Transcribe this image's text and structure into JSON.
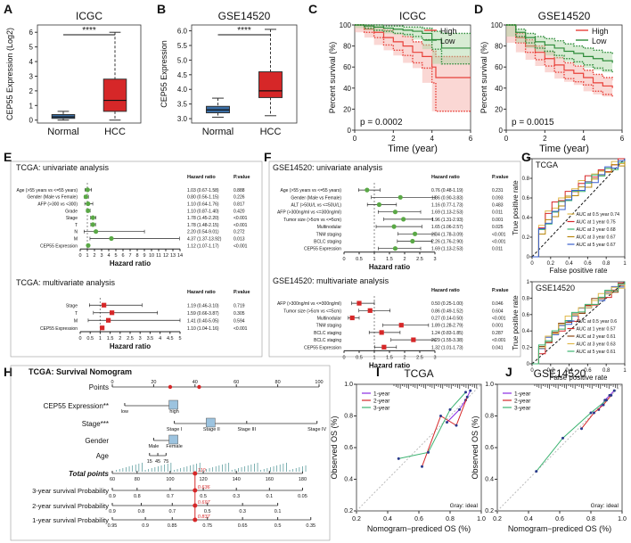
{
  "panel_labels": [
    "A",
    "B",
    "C",
    "D",
    "E",
    "F",
    "G",
    "H",
    "I",
    "J"
  ],
  "colors": {
    "normal_box": "#3a6ea5",
    "hcc_box": "#d62728",
    "high": "#e8413a",
    "low": "#2e8b3a",
    "green_dot": "#5aa846",
    "red_sq": "#d62728"
  },
  "chart_data": [
    {
      "id": "A",
      "type": "box",
      "title": "ICGC",
      "ylabel": "CEP55 Expression (Log2)",
      "categories": [
        "Normal",
        "HCC"
      ],
      "ylim": [
        -0.2,
        6.5
      ],
      "yticks": [
        0,
        1,
        2,
        3,
        4,
        5,
        6
      ],
      "boxes": [
        {
          "min": 0,
          "q1": 0.12,
          "median": 0.22,
          "q3": 0.38,
          "max": 0.6
        },
        {
          "min": 0,
          "q1": 0.6,
          "median": 1.35,
          "q3": 2.8,
          "max": 6.0
        }
      ],
      "significance": "****"
    },
    {
      "id": "B",
      "type": "box",
      "title": "GSE14520",
      "ylabel": "CEP55 Expression",
      "categories": [
        "Normal",
        "HCC"
      ],
      "ylim": [
        2.85,
        6.2
      ],
      "yticks": [
        3.0,
        3.5,
        4.0,
        4.5,
        5.0,
        5.5,
        6.0
      ],
      "boxes": [
        {
          "min": 3.05,
          "q1": 3.2,
          "median": 3.3,
          "q3": 3.42,
          "max": 3.7
        },
        {
          "min": 3.1,
          "q1": 3.72,
          "median": 3.95,
          "q3": 4.6,
          "max": 6.05
        }
      ],
      "significance": "****"
    },
    {
      "id": "C",
      "type": "line",
      "title": "ICGC",
      "xlabel": "Time (year)",
      "ylabel": "Percent survival (%)",
      "xlim": [
        0,
        6
      ],
      "ylim": [
        0,
        100
      ],
      "xticks": [
        0,
        2,
        4,
        6
      ],
      "yticks": [
        0,
        20,
        40,
        60,
        80,
        100
      ],
      "legend": [
        "High",
        "Low"
      ],
      "pvalue": "p = 0.0002",
      "series": [
        {
          "name": "High",
          "x": [
            0,
            0.5,
            1,
            1.5,
            2,
            2.5,
            3,
            3.5,
            4,
            4.2,
            6
          ],
          "y": [
            100,
            96,
            93,
            88,
            84,
            80,
            74,
            70,
            60,
            50,
            50
          ],
          "upper": [
            100,
            99,
            98,
            95,
            92,
            89,
            84,
            81,
            75,
            70,
            70
          ],
          "lower": [
            100,
            93,
            88,
            81,
            76,
            71,
            64,
            59,
            45,
            18,
            18
          ]
        },
        {
          "name": "Low",
          "x": [
            0,
            0.5,
            1,
            1.5,
            2,
            2.5,
            3,
            3.5,
            4,
            4.5,
            6
          ],
          "y": [
            100,
            99,
            98,
            97,
            96,
            95,
            94,
            92,
            86,
            78,
            78
          ],
          "upper": [
            100,
            100,
            100,
            99,
            99,
            98,
            98,
            97,
            94,
            92,
            92
          ],
          "lower": [
            100,
            97,
            95,
            94,
            92,
            91,
            89,
            86,
            77,
            63,
            63
          ]
        }
      ]
    },
    {
      "id": "D",
      "type": "line",
      "title": "GSE14520",
      "xlabel": "Time (year)",
      "ylabel": "Percent survival (%)",
      "xlim": [
        0,
        6
      ],
      "ylim": [
        0,
        100
      ],
      "xticks": [
        0,
        2,
        4,
        6
      ],
      "yticks": [
        0,
        20,
        40,
        60,
        80,
        100
      ],
      "legend": [
        "High",
        "Low"
      ],
      "pvalue": "p = 0.0015",
      "series": [
        {
          "name": "High",
          "x": [
            0,
            0.5,
            1,
            1.5,
            2,
            2.5,
            3,
            3.5,
            4,
            4.5,
            5,
            5.5
          ],
          "y": [
            100,
            88,
            80,
            74,
            68,
            62,
            57,
            54,
            50,
            45,
            42,
            40
          ],
          "upper": [
            100,
            92,
            86,
            80,
            75,
            69,
            64,
            61,
            57,
            53,
            50,
            48
          ],
          "lower": [
            100,
            83,
            74,
            67,
            61,
            55,
            49,
            46,
            43,
            37,
            34,
            32
          ]
        },
        {
          "name": "Low",
          "x": [
            0,
            0.5,
            1,
            1.5,
            2,
            2.5,
            3,
            3.5,
            4,
            4.5,
            5,
            5.5
          ],
          "y": [
            100,
            93,
            88,
            84,
            81,
            78,
            75,
            73,
            70,
            68,
            66,
            64
          ],
          "upper": [
            100,
            96,
            92,
            89,
            87,
            85,
            82,
            80,
            78,
            76,
            74,
            72
          ],
          "lower": [
            100,
            89,
            83,
            78,
            75,
            71,
            68,
            65,
            62,
            59,
            57,
            55
          ]
        }
      ]
    },
    {
      "id": "E1",
      "type": "forest",
      "title": "TCGA: univariate analysis",
      "xlabel": "Hazard ratio",
      "xlim": [
        0,
        14
      ],
      "xticks": [
        0,
        1,
        2,
        3,
        4,
        5,
        6,
        7,
        8,
        9,
        10,
        11,
        12,
        13,
        14
      ],
      "col_headers": [
        "Hazard ratio",
        "P.value"
      ],
      "rows": [
        {
          "label": "Age (>55 years vs <=55 years)",
          "hr": 1.03,
          "lo": 0.67,
          "hi": 1.58,
          "hr_text": "1.03 (0.67-1.58)",
          "p": "0.888"
        },
        {
          "label": "Gender (Male vs Female)",
          "hr": 0.8,
          "lo": 0.56,
          "hi": 1.15,
          "hr_text": "0.80 (0.56-1.15)",
          "p": "0.226"
        },
        {
          "label": "AFP (>300 vs <300)",
          "hr": 1.1,
          "lo": 0.64,
          "hi": 1.76,
          "hr_text": "1.10 (0.64-1.76)",
          "p": "0.817"
        },
        {
          "label": "Grade",
          "hr": 1.1,
          "lo": 0.87,
          "hi": 1.4,
          "hr_text": "1.10 (0.87-1.40)",
          "p": "0.420"
        },
        {
          "label": "Stage",
          "hr": 1.78,
          "lo": 1.45,
          "hi": 2.2,
          "hr_text": "1.78 (1.45-2.20)",
          "p": "<0.001"
        },
        {
          "label": "T",
          "hr": 1.78,
          "lo": 1.48,
          "hi": 2.15,
          "hr_text": "1.78 (1.48-2.15)",
          "p": "<0.001"
        },
        {
          "label": "N",
          "hr": 2.2,
          "lo": 0.54,
          "hi": 9.01,
          "hr_text": "2.20 (0.54-9.01)",
          "p": "0.272"
        },
        {
          "label": "M",
          "hr": 4.37,
          "lo": 1.37,
          "hi": 13.92,
          "hr_text": "4.37 (1.37-13.92)",
          "p": "0.013"
        },
        {
          "label": "CEP55 Expression",
          "hr": 1.12,
          "lo": 1.07,
          "hi": 1.17,
          "hr_text": "1.12 (1.07-1.17)",
          "p": "<0.001"
        }
      ]
    },
    {
      "id": "E2",
      "type": "forest",
      "title": "TCGA: multivariate analysis",
      "xlabel": "Hazard ratio",
      "xlim": [
        0,
        5
      ],
      "xticks": [
        0,
        0.5,
        1,
        1.5,
        2,
        2.5,
        3,
        3.5,
        4,
        4.5,
        5
      ],
      "col_headers": [
        "Hazard ratio",
        "P.value"
      ],
      "rows": [
        {
          "label": "Stage",
          "hr": 1.19,
          "lo": 0.46,
          "hi": 3.1,
          "hr_text": "1.19 (0.46-3.10)",
          "p": "0.719"
        },
        {
          "label": "T",
          "hr": 1.59,
          "lo": 0.66,
          "hi": 3.87,
          "hr_text": "1.59 (0.66-3.87)",
          "p": "0.305"
        },
        {
          "label": "M",
          "hr": 1.41,
          "lo": 0.4,
          "hi": 5.05,
          "hr_text": "1.41 (0.40-5.05)",
          "p": "0.594"
        },
        {
          "label": "CEP55 Expression",
          "hr": 1.1,
          "lo": 1.04,
          "hi": 1.16,
          "hr_text": "1.10 (1.04-1.16)",
          "p": "<0.001"
        }
      ]
    },
    {
      "id": "F1",
      "type": "forest",
      "title": "GSE14520: univariate analysis",
      "xlabel": "Hazard ratio",
      "xlim": [
        0,
        3
      ],
      "xticks": [
        0,
        0.5,
        1,
        1.5,
        2,
        2.5,
        3
      ],
      "col_headers": [
        "Hazard ratio",
        "P.value"
      ],
      "rows": [
        {
          "label": "Age (>55 years vs <=55 years)",
          "hr": 0.76,
          "lo": 0.48,
          "hi": 1.19,
          "hr_text": "0.76 (0.48-1.19)",
          "p": "0.231"
        },
        {
          "label": "Gender (Male vs Female)",
          "hr": 1.86,
          "lo": 0.9,
          "hi": 3.83,
          "hr_text": "1.86 (0.90-3.83)",
          "p": "0.093"
        },
        {
          "label": "ALT (>50U/L vs <=50U/L)",
          "hr": 1.16,
          "lo": 0.77,
          "hi": 1.73,
          "hr_text": "1.16 (0.77-1.73)",
          "p": "0.483"
        },
        {
          "label": "AFP (>300ng/ml vs <=300ng/ml)",
          "hr": 1.69,
          "lo": 1.13,
          "hi": 2.53,
          "hr_text": "1.69 (1.13-2.53)",
          "p": "0.011"
        },
        {
          "label": "Tumor size (>5cm vs <=5cm)",
          "hr": 1.96,
          "lo": 1.31,
          "hi": 2.93,
          "hr_text": "1.96 (1.31-2.93)",
          "p": "0.001"
        },
        {
          "label": "Multinodular",
          "hr": 1.65,
          "lo": 1.06,
          "hi": 2.57,
          "hr_text": "1.65 (1.06-2.57)",
          "p": "0.025"
        },
        {
          "label": "TNM staging",
          "hr": 2.34,
          "lo": 1.78,
          "hi": 3.09,
          "hr_text": "2.34 (1.78-3.09)",
          "p": "<0.001"
        },
        {
          "label": "BCLC staging",
          "hr": 2.26,
          "lo": 1.76,
          "hi": 2.9,
          "hr_text": "2.26 (1.76-2.90)",
          "p": "<0.001"
        },
        {
          "label": "CEP55 Expression",
          "hr": 1.69,
          "lo": 1.13,
          "hi": 2.53,
          "hr_text": "1.69 (1.13-2.53)",
          "p": "0.011"
        }
      ]
    },
    {
      "id": "F2",
      "type": "forest",
      "title": "GSE14520: multivariate analysis",
      "xlabel": "Hazard ratio",
      "xlim": [
        0,
        3
      ],
      "xticks": [
        0,
        0.5,
        1,
        1.5,
        2,
        2.5,
        3
      ],
      "col_headers": [
        "Hazard ratio",
        "P.value"
      ],
      "rows": [
        {
          "label": "AFP (>300ng/ml vs <=300ng/ml)",
          "hr": 0.5,
          "lo": 0.25,
          "hi": 1.0,
          "hr_text": "0.50 (0.25-1.00)",
          "p": "0.046"
        },
        {
          "label": "Tumor size (>5cm vs <=5cm)",
          "hr": 0.86,
          "lo": 0.49,
          "hi": 1.52,
          "hr_text": "0.86 (0.49-1.52)",
          "p": "0.604"
        },
        {
          "label": "Multinodular",
          "hr": 0.27,
          "lo": 0.14,
          "hi": 0.5,
          "hr_text": "0.27 (0.14-0.50)",
          "p": "<0.001"
        },
        {
          "label": "TNM staging",
          "hr": 1.89,
          "lo": 1.28,
          "hi": 2.79,
          "hr_text": "1.89 (1.28-2.79)",
          "p": "0.001"
        },
        {
          "label": "BCLC staging",
          "hr": 1.24,
          "lo": 0.83,
          "hi": 1.85,
          "hr_text": "1.24 (0.83-1.85)",
          "p": "0.287"
        },
        {
          "label": "BCLC staging",
          "hr": 2.29,
          "lo": 1.55,
          "hi": 3.38,
          "hr_text": "2.29 (1.55-3.38)",
          "p": "<0.001"
        },
        {
          "label": "CEP55 Expression",
          "hr": 1.32,
          "lo": 1.01,
          "hi": 1.73,
          "hr_text": "1.32 (1.01-1.73)",
          "p": "0.041"
        }
      ]
    },
    {
      "id": "G1",
      "type": "roc",
      "title": "TCGA",
      "xlabel": "False positive rate",
      "ylabel": "True positive rate",
      "xlim": [
        0,
        1
      ],
      "ylim": [
        0,
        1
      ],
      "xticks": [
        0,
        0.2,
        0.4,
        0.6,
        0.8,
        1
      ],
      "yticks": [
        0,
        0.2,
        0.4,
        0.6,
        0.8,
        1
      ],
      "legend": [
        "AUC at 0.5 year 0.74",
        "AUC at 1 year 0.75",
        "AUC at 2 year 0.68",
        "AUC at 3 year 0.67",
        "AUC at 5 year 0.67"
      ],
      "series_colors": [
        "#e0b84a",
        "#d62728",
        "#3cb371",
        "#b8860b",
        "#3a5fcd"
      ],
      "auc": [
        0.74,
        0.75,
        0.68,
        0.67,
        0.67
      ]
    },
    {
      "id": "G2",
      "type": "roc",
      "title": "GSE14520",
      "xlabel": "False positive rate",
      "ylabel": "True positive rate",
      "xlim": [
        0,
        1
      ],
      "ylim": [
        0,
        1
      ],
      "xticks": [
        0,
        0.2,
        0.4,
        0.6,
        0.8,
        1
      ],
      "yticks": [
        0,
        0.2,
        0.4,
        0.6,
        0.8,
        1
      ],
      "legend": [
        "AUC at 0.5 year 0.6",
        "AUC at 1 year 0.57",
        "AUC at 2 year 0.61",
        "AUC at 3 year 0.63",
        "AUC at 5 year 0.61"
      ],
      "series_colors": [
        "#3a5fcd",
        "#d62728",
        "#8b4513",
        "#e0b84a",
        "#3cb371"
      ],
      "auc": [
        0.6,
        0.57,
        0.61,
        0.63,
        0.61
      ]
    },
    {
      "id": "H",
      "type": "nomogram",
      "title": "TCGA: Survival Nomogram",
      "rows": [
        {
          "label": "Points",
          "ticks": [
            "0",
            "20",
            "40",
            "60",
            "80",
            "100"
          ]
        },
        {
          "label": "CEP55 Expression**",
          "ticks": [
            "low",
            "high"
          ]
        },
        {
          "label": "Stage***",
          "ticks": [
            "Stage I",
            "Stage II",
            "Stage III",
            "Stage IV"
          ]
        },
        {
          "label": "Gender",
          "ticks": [
            "Male",
            "Female"
          ]
        },
        {
          "label": "Age",
          "ticks": [
            "15",
            "45",
            "75"
          ]
        },
        {
          "label": "Total points",
          "ticks": [
            "60",
            "80",
            "100",
            "120",
            "140",
            "160",
            "180"
          ],
          "marker": "110"
        },
        {
          "label": "3-year survival Probability",
          "ticks": [
            "0.9",
            "0.8",
            "0.7",
            "0.5",
            "0.3",
            "0.1",
            "0.05"
          ],
          "marker": "0.636"
        },
        {
          "label": "2-year survival Probability",
          "ticks": [
            "0.9",
            "0.8",
            "0.7",
            "0.5",
            "0.3",
            "0.1"
          ],
          "marker": "0.697"
        },
        {
          "label": "1-year survival Probability",
          "ticks": [
            "0.95",
            "0.9",
            "0.85",
            "0.75",
            "0.65",
            "0.5",
            "0.35"
          ],
          "marker": "0.837"
        }
      ]
    },
    {
      "id": "I",
      "type": "calibration",
      "title": "TCGA",
      "xlabel": "Nomogram−prediced OS (%)",
      "ylabel": "Observed OS (%)",
      "xlim": [
        0.2,
        1
      ],
      "ylim": [
        0.2,
        1
      ],
      "xticks": [
        0.2,
        0.4,
        0.6,
        0.8,
        1.0
      ],
      "yticks": [
        0.2,
        0.4,
        0.6,
        0.8,
        1.0
      ],
      "legend": [
        "1-year",
        "2-year",
        "3-year"
      ],
      "note": "Gray: ideal",
      "series": [
        {
          "name": "1-year",
          "x": [
            0.78,
            0.86,
            0.9,
            0.93
          ],
          "y": [
            0.76,
            0.84,
            0.9,
            0.96
          ]
        },
        {
          "name": "2-year",
          "x": [
            0.62,
            0.74,
            0.84,
            0.91
          ],
          "y": [
            0.48,
            0.8,
            0.74,
            0.92
          ]
        },
        {
          "name": "3-year",
          "x": [
            0.47,
            0.66,
            0.8,
            0.9
          ],
          "y": [
            0.53,
            0.57,
            0.84,
            0.95
          ]
        }
      ]
    },
    {
      "id": "J",
      "type": "calibration",
      "title": "GSE14520",
      "xlabel": "Nomogram−prediced OS (%)",
      "ylabel": "Observed OS (%)",
      "xlim": [
        0.2,
        1
      ],
      "ylim": [
        0.2,
        1
      ],
      "xticks": [
        0.2,
        0.4,
        0.6,
        0.8,
        1.0
      ],
      "yticks": [
        0.2,
        0.4,
        0.6,
        0.8,
        1.0
      ],
      "legend": [
        "1-year",
        "2-year",
        "3-year"
      ],
      "note": "Gray: ideal",
      "series": [
        {
          "name": "1-year",
          "x": [
            0.85,
            0.89,
            0.92,
            0.95
          ],
          "y": [
            0.84,
            0.9,
            0.93,
            0.96
          ]
        },
        {
          "name": "2-year",
          "x": [
            0.74,
            0.82,
            0.88,
            0.93
          ],
          "y": [
            0.72,
            0.82,
            0.87,
            0.93
          ]
        },
        {
          "name": "3-year",
          "x": [
            0.45,
            0.62,
            0.8,
            0.9
          ],
          "y": [
            0.45,
            0.66,
            0.82,
            0.9
          ]
        }
      ]
    }
  ]
}
